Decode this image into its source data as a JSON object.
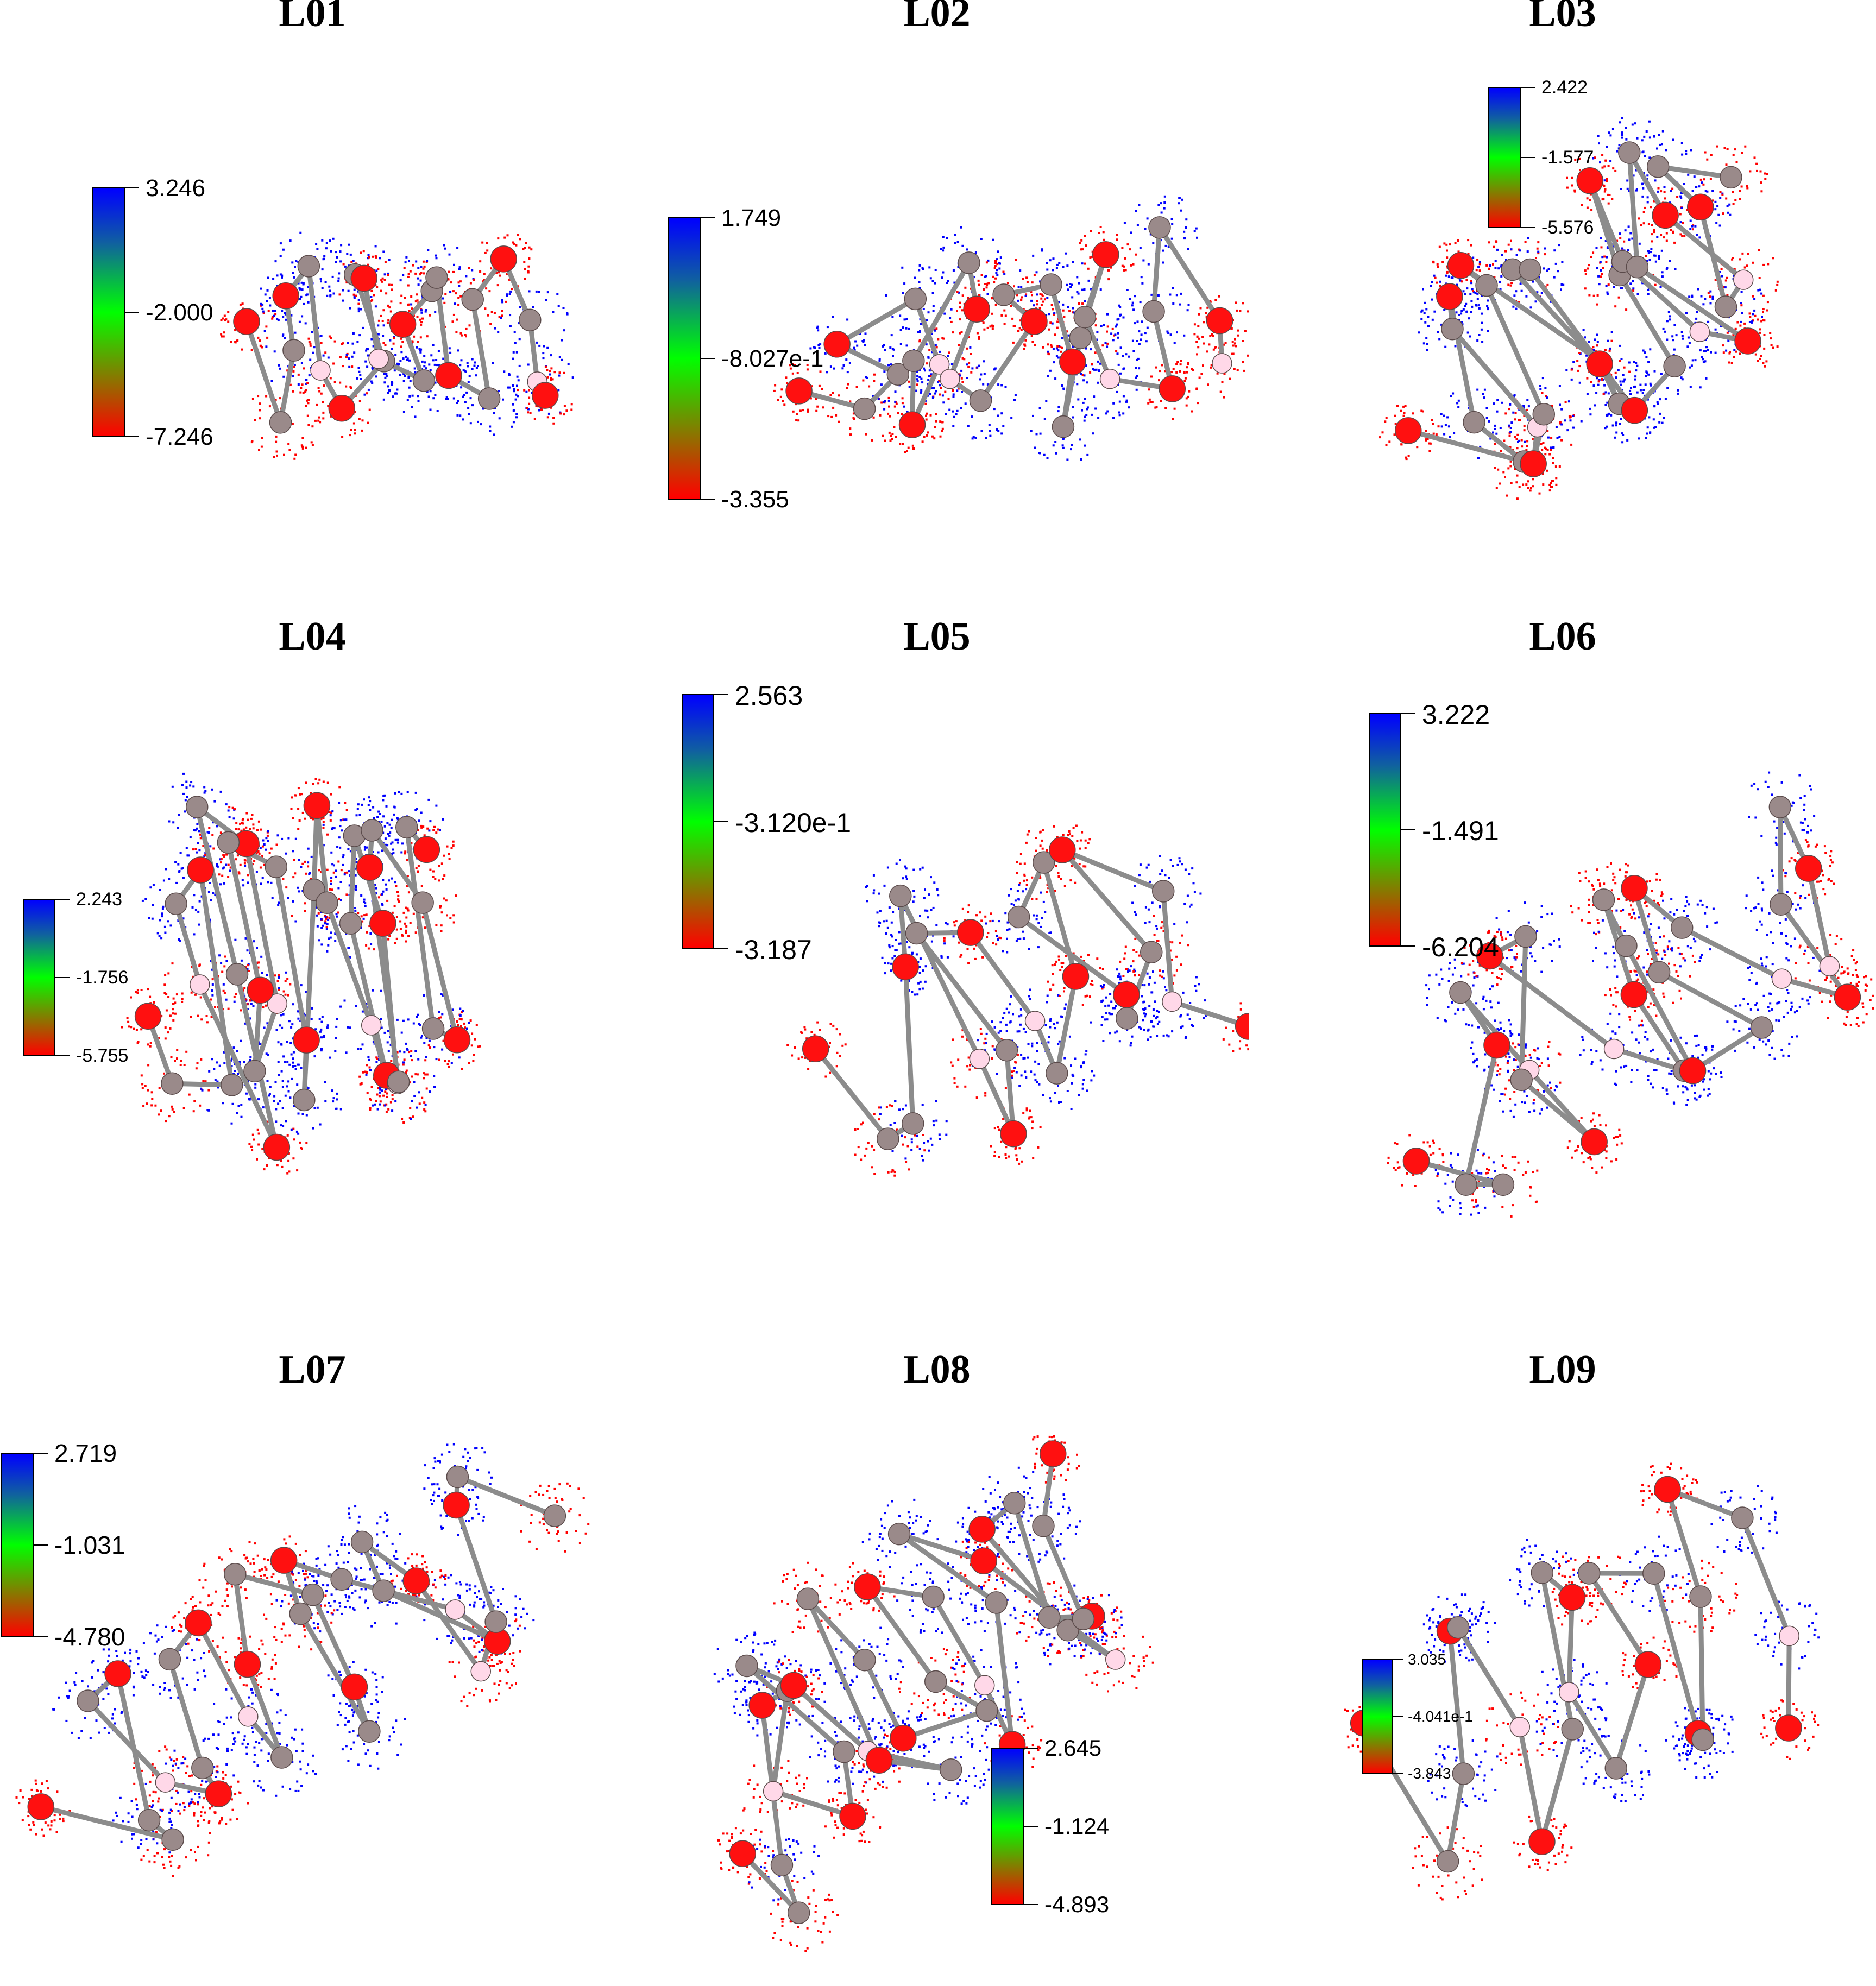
{
  "panels": [
    {
      "title": "L01",
      "scale": {
        "max": "3.246",
        "mid": "-2.000",
        "min": "-7.246"
      }
    },
    {
      "title": "L02",
      "scale": {
        "max": "1.749",
        "mid": "-8.027e-1",
        "min": "-3.355"
      }
    },
    {
      "title": "L03",
      "scale": {
        "max": "2.422",
        "mid": "-1.577",
        "min": "-5.576"
      }
    },
    {
      "title": "L04",
      "scale": {
        "max": "2.243",
        "mid": "-1.756",
        "min": "-5.755"
      }
    },
    {
      "title": "L05",
      "scale": {
        "max": "2.563",
        "mid": "-3.120e-1",
        "min": "-3.187"
      }
    },
    {
      "title": "L06",
      "scale": {
        "max": "3.222",
        "mid": "-1.491",
        "min": "-6.204"
      }
    },
    {
      "title": "L07",
      "scale": {
        "max": "2.719",
        "mid": "-1.031",
        "min": "-4.780"
      }
    },
    {
      "title": "L08",
      "scale": {
        "max": "2.645",
        "mid": "-1.124",
        "min": "-4.893"
      }
    },
    {
      "title": "L09",
      "scale": {
        "max": "3.035",
        "mid": "-4.041e-1",
        "min": "-3.843"
      }
    }
  ],
  "colors": {
    "positive_potential": "#0000ff",
    "negative_potential": "#ff0000",
    "carbon_atom": "#9a8a8a",
    "oxygen_atom": "#ff1010",
    "hydrogen_atom": "#ffd8e8",
    "bond": "#8c8c8c"
  }
}
